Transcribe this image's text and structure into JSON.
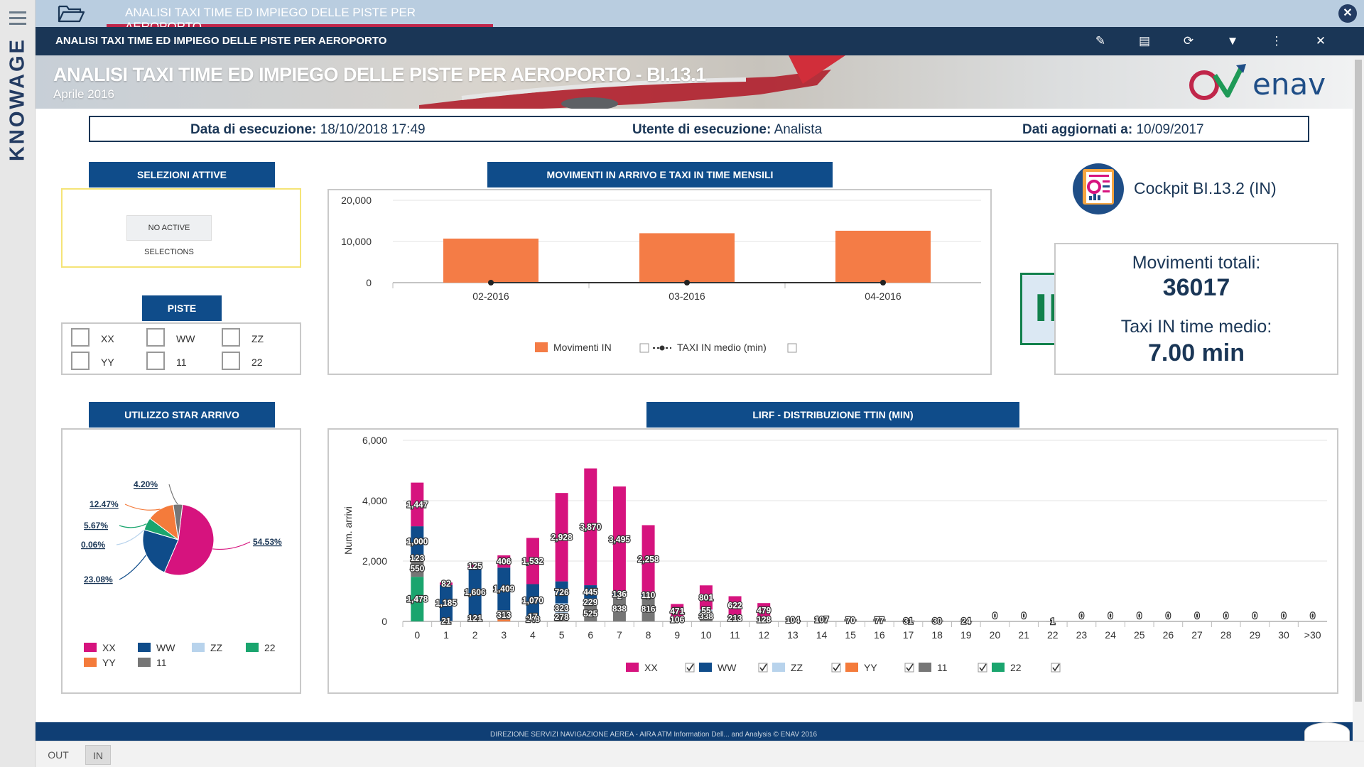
{
  "app": {
    "brand": "KNOWAGE"
  },
  "tab": {
    "title": "ANALISI TAXI TIME ED IMPIEGO DELLE PISTE PER AEROPORTO"
  },
  "toolbar": {
    "title": "ANALISI TAXI TIME ED IMPIEGO DELLE PISTE PER AEROPORTO",
    "icons": [
      "edit-icon",
      "notes-icon",
      "refresh-icon",
      "filter-icon",
      "more-icon",
      "close-icon"
    ]
  },
  "banner": {
    "title": "ANALISI TAXI TIME ED IMPIEGO DELLE PISTE PER AEROPORTO - BI.13.1",
    "subtitle": "Aprile 2016",
    "logo_text": "enav"
  },
  "info": {
    "exec_date_label": "Data di esecuzione:",
    "exec_date_value": "18/10/2018 17:49",
    "user_label": "Utente di esecuzione:",
    "user_value": "Analista",
    "updated_label": "Dati aggiornati a:",
    "updated_value": "10/09/2017"
  },
  "selections": {
    "title": "SELEZIONI ATTIVE",
    "empty_label": "NO ACTIVE SELECTIONS"
  },
  "piste": {
    "title": "PISTE",
    "items": [
      "XX",
      "WW",
      "ZZ",
      "YY",
      "11",
      "22"
    ]
  },
  "cockpit": {
    "label": "Cockpit BI.13.2 (IN)"
  },
  "kpi": {
    "badge": "IN",
    "total_label": "Movimenti totali:",
    "total_value": "36017",
    "avg_label": "Taxi IN time medio:",
    "avg_value": "7.00 min"
  },
  "colors": {
    "XX": "#d6137e",
    "WW": "#0f4c8a",
    "ZZ": "#b8d3ec",
    "YY": "#f47b3b",
    "11": "#767676",
    "22": "#1aa56e",
    "orange": "#f47c46",
    "navy": "#0f4c8a"
  },
  "chart_data": [
    {
      "id": "monthly",
      "type": "bar",
      "title": "MOVIMENTI IN ARRIVO E TAXI IN TIME MENSILI",
      "categories": [
        "02-2016",
        "03-2016",
        "04-2016"
      ],
      "series": [
        {
          "name": "Movimenti IN",
          "type": "bar",
          "values": [
            10700,
            12000,
            12600
          ]
        },
        {
          "name": "TAXI IN medio (min)",
          "type": "line",
          "values": [
            7,
            7,
            7
          ]
        }
      ],
      "ylim": [
        0,
        20000
      ],
      "yticks": [
        "20,000",
        "10,000",
        "0"
      ],
      "legend": [
        "Movimenti IN",
        "TAXI IN medio (min)"
      ]
    },
    {
      "id": "star",
      "type": "pie",
      "title": "UTILIZZO STAR ARRIVO",
      "slices": [
        {
          "label": "XX",
          "value": 54.53,
          "text": "54.53%"
        },
        {
          "label": "WW",
          "value": 23.08,
          "text": "23.08%"
        },
        {
          "label": "ZZ",
          "value": 0.06,
          "text": "0.06%"
        },
        {
          "label": "22",
          "value": 5.67,
          "text": "5.67%"
        },
        {
          "label": "YY",
          "value": 12.47,
          "text": "12.47%"
        },
        {
          "label": "11",
          "value": 4.2,
          "text": "4.20%"
        }
      ],
      "legend": [
        "XX",
        "WW",
        "ZZ",
        "22",
        "YY",
        "11"
      ]
    },
    {
      "id": "ttin",
      "type": "bar",
      "stacked": true,
      "title": "LIRF - DISTRIBUZIONE TTIN (MIN)",
      "ylabel": "Num. arrivi",
      "ylim": [
        0,
        6000
      ],
      "yticks": [
        "6,000",
        "4,000",
        "2,000",
        "0"
      ],
      "categories": [
        "0",
        "1",
        "2",
        "3",
        "4",
        "5",
        "6",
        "7",
        "8",
        "9",
        "10",
        "11",
        "12",
        "13",
        "14",
        "15",
        "16",
        "17",
        "18",
        "19",
        "20",
        "21",
        "22",
        "23",
        "24",
        "25",
        "26",
        "27",
        "28",
        "29",
        "30",
        ">30"
      ],
      "series": [
        {
          "name": "22",
          "values": [
            1478,
            0,
            0,
            0,
            0,
            0,
            0,
            0,
            0,
            0,
            0,
            0,
            0,
            0,
            0,
            0,
            0,
            0,
            0,
            0,
            0,
            0,
            0,
            0,
            0,
            0,
            0,
            0,
            0,
            0,
            0,
            0
          ]
        },
        {
          "name": "YY",
          "values": [
            0,
            0,
            40,
            60,
            0,
            0,
            0,
            0,
            0,
            0,
            0,
            0,
            0,
            0,
            0,
            0,
            0,
            0,
            0,
            0,
            0,
            0,
            0,
            0,
            0,
            0,
            0,
            0,
            0,
            0,
            0,
            0
          ]
        },
        {
          "name": "11",
          "values": [
            550,
            21,
            121,
            313,
            148,
            278,
            525,
            838,
            816,
            106,
            338,
            213,
            128,
            104,
            107,
            70,
            77,
            31,
            30,
            24,
            0,
            0,
            1,
            0,
            0,
            0,
            0,
            0,
            0,
            0,
            0,
            0
          ]
        },
        {
          "name": "ZZ",
          "values": [
            123,
            0,
            0,
            0,
            17,
            323,
            229,
            2,
            5,
            0,
            55,
            0,
            0,
            0,
            0,
            0,
            0,
            0,
            0,
            0,
            0,
            0,
            0,
            0,
            0,
            0,
            0,
            0,
            0,
            0,
            0,
            0
          ]
        },
        {
          "name": "WW",
          "values": [
            1000,
            1185,
            1606,
            1409,
            1070,
            726,
            445,
            136,
            110,
            0,
            0,
            0,
            0,
            0,
            0,
            0,
            0,
            0,
            0,
            0,
            0,
            0,
            0,
            0,
            0,
            0,
            0,
            0,
            0,
            0,
            0,
            0
          ]
        },
        {
          "name": "XX",
          "values": [
            1447,
            82,
            125,
            406,
            1532,
            2928,
            3870,
            3495,
            2258,
            471,
            801,
            622,
            479,
            0,
            0,
            0,
            0,
            0,
            0,
            0,
            0,
            0,
            0,
            0,
            0,
            0,
            0,
            0,
            0,
            0,
            0,
            0
          ]
        }
      ],
      "legend": [
        "XX",
        "WW",
        "ZZ",
        "YY",
        "11",
        "22"
      ]
    }
  ],
  "footer": {
    "text": "DIREZIONE SERVIZI NAVIGAZIONE AEREA - AIRA ATM Information Dell... and Analysis © ENAV 2016"
  },
  "bottom_tabs": [
    "OUT",
    "IN"
  ]
}
